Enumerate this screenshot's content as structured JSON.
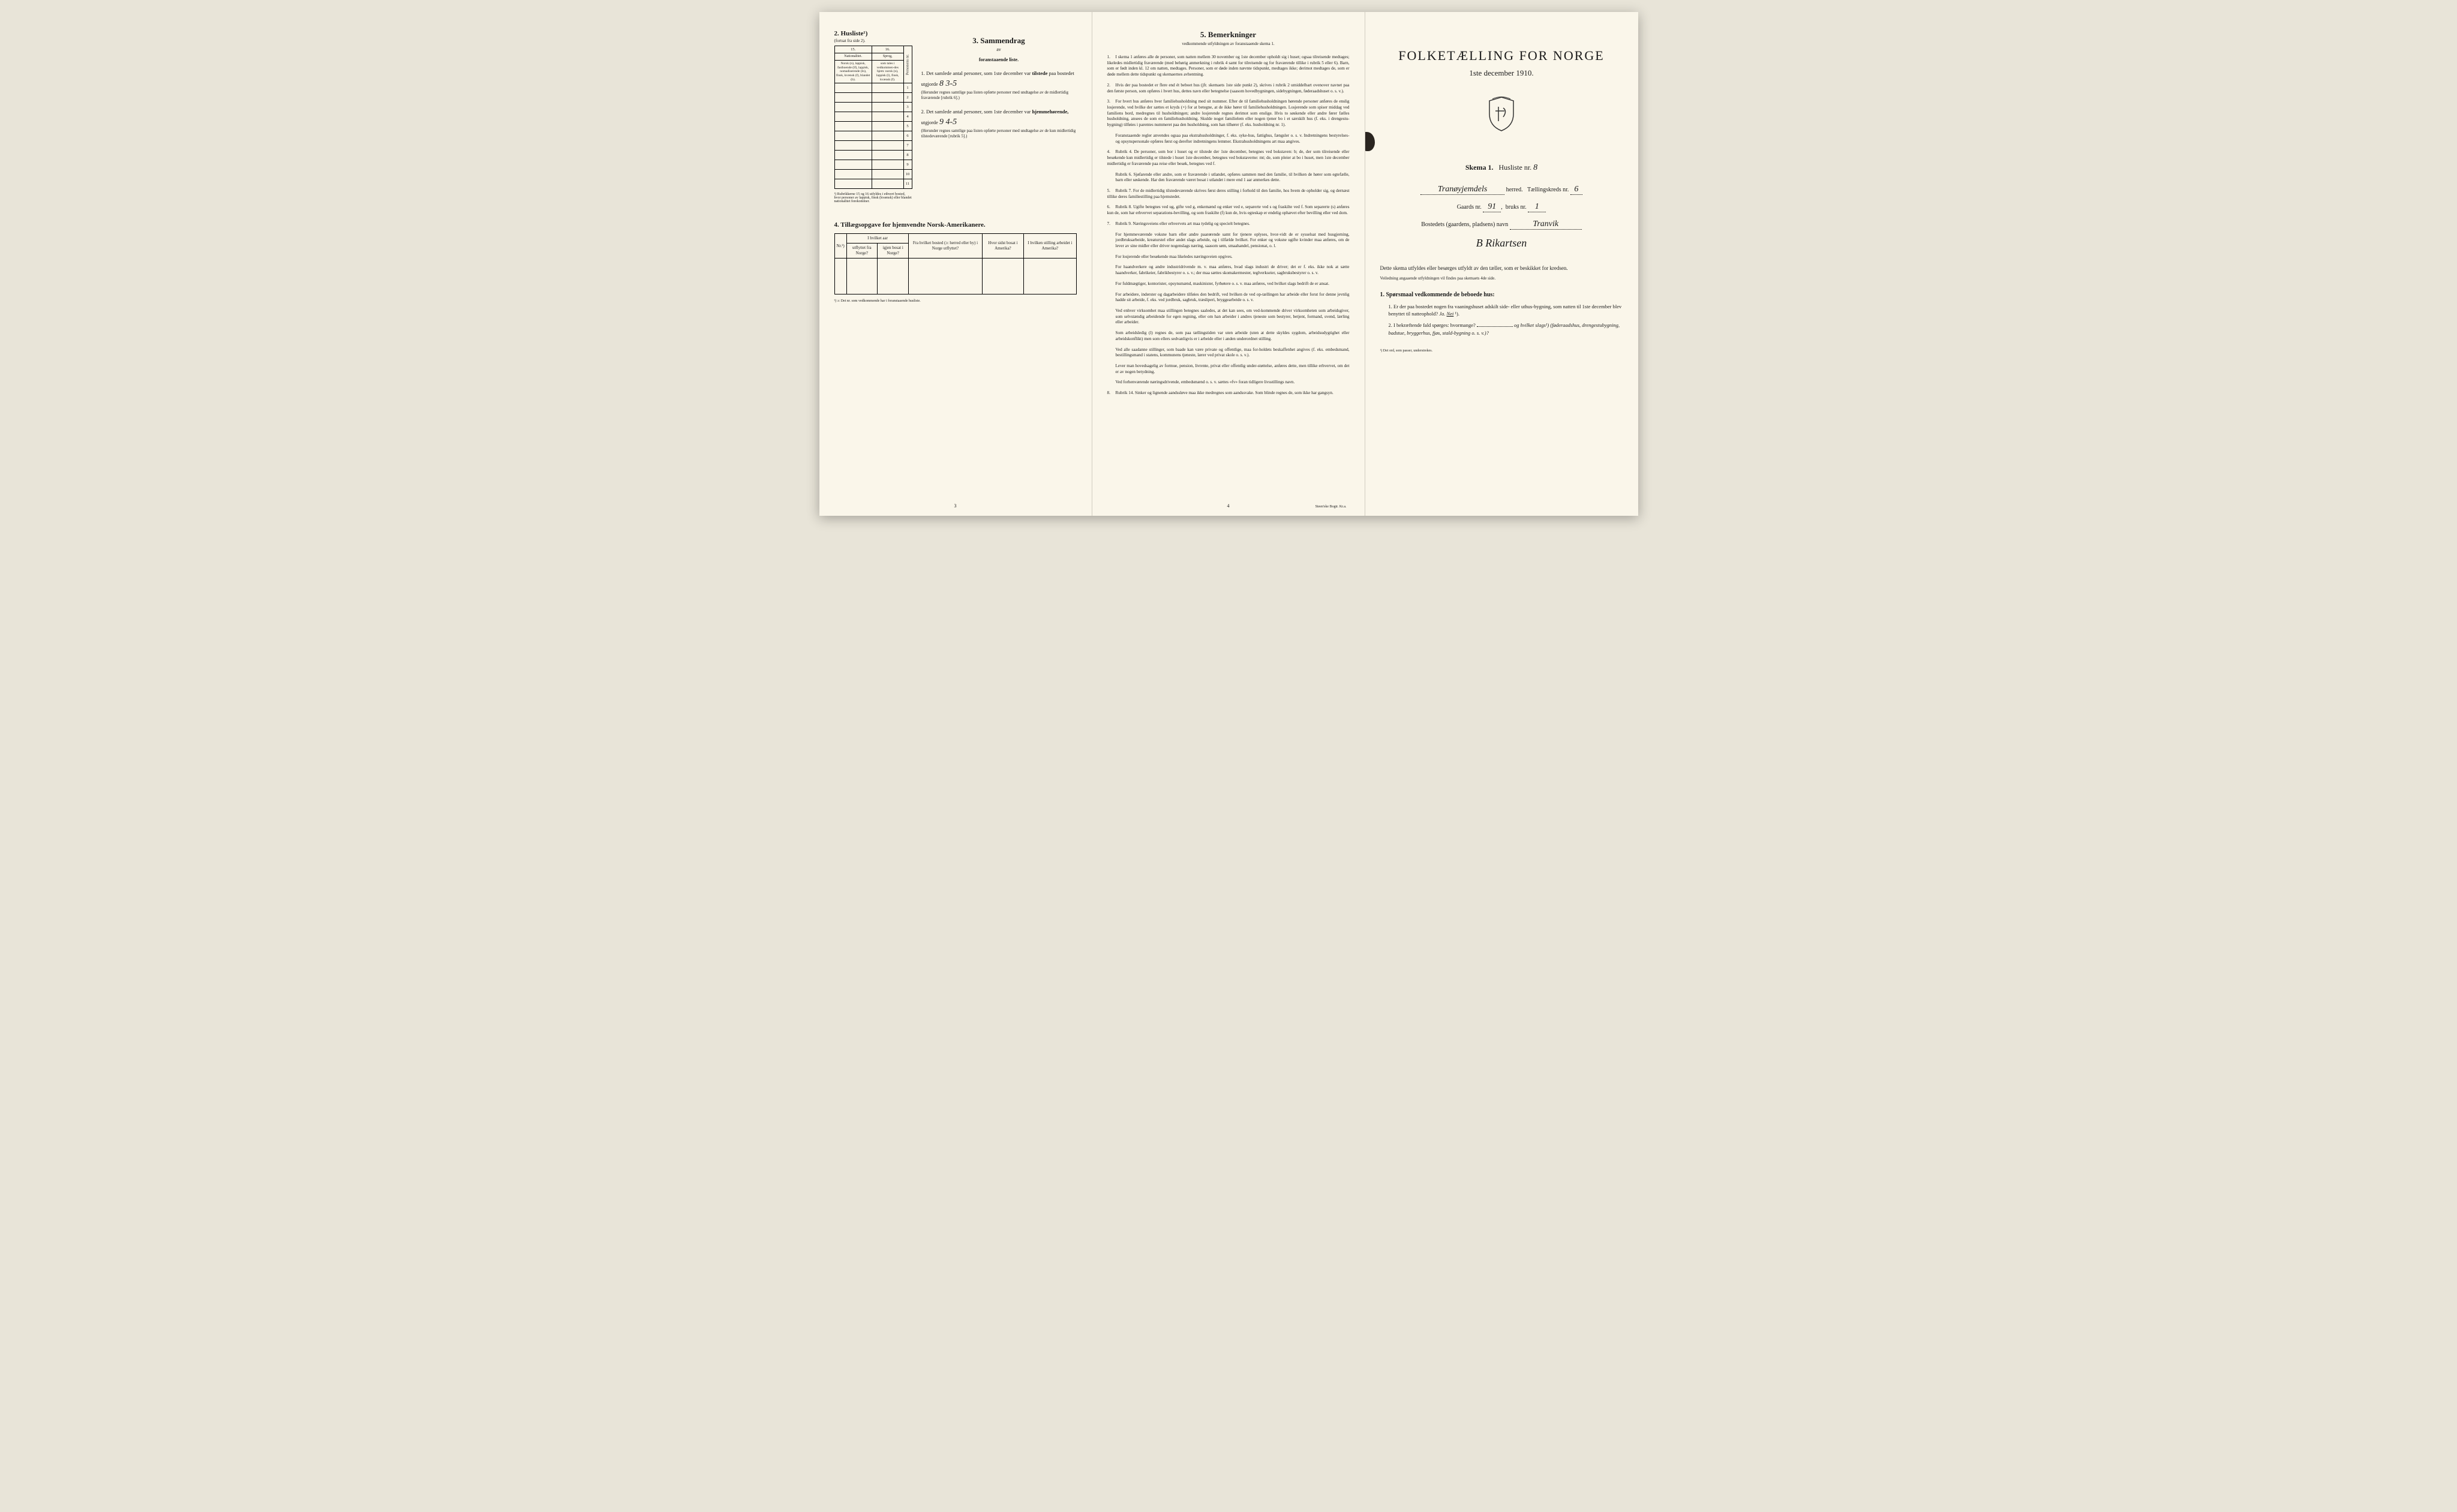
{
  "page1": {
    "section2": {
      "title": "2. Husliste¹)",
      "subtitle": "(fortsat fra side 2).",
      "col_left_num": "15.",
      "col_right_num": "16.",
      "col_left_header": "Nationalitet.",
      "col_right_header": "Sprog,",
      "col_left_text": "Norsk (n), lappisk, fastboende (lf), lappisk, nomadiserende (ln), finsk, kvænsk (f), blandet (b).",
      "col_right_text": "som tales i vedkommen-des hjem: norsk (n), lappisk (l), finsk, kvænsk (f).",
      "col_person": "Personens nr.",
      "row_count": 11,
      "footnote": "¹) Rubrikkerne 15 og 16 utfyldes i ethvert bosted, hvor personer av lappisk, finsk (kvænsk) eller blandet nationalitet forekommer."
    },
    "section3": {
      "title": "3. Sammendrag",
      "sub1": "av",
      "sub2": "foranstaaende liste.",
      "item1_text": "1. Det samlede antal personer, som 1ste december var",
      "item1_bold": "tilstede",
      "item1_cont": "paa bostedet utgjorde",
      "item1_value": "8  3-5",
      "item1_fine": "(Herunder regnes samtlige paa listen opførte personer med undtagelse av de midlertidig fraværende [rubrik 6].)",
      "item2_text": "2. Det samlede antal personer, som 1ste december var",
      "item2_bold": "hjemmehørende,",
      "item2_cont": "utgjorde",
      "item2_value": "9  4-5",
      "item2_fine": "(Herunder regnes samtlige paa listen opførte personer med undtagelse av de kun midlertidig tilstedeværende [rubrik 5].)"
    },
    "section4": {
      "title": "4. Tillægsopgave for hjemvendte Norsk-Amerikanere.",
      "cols": {
        "nr": "Nr.²)",
        "group1": "I hvilket aar",
        "utflyttet": "utflyttet fra Norge?",
        "igjen": "igjen bosat i Norge?",
        "fra_bosted": "Fra hvilket bosted (ɔ: herred eller by) i Norge utflyttet?",
        "hvor_sidst": "Hvor sidst bosat i Amerika?",
        "stilling": "I hvilken stilling arbeidet i Amerika?"
      },
      "footnote": "²) ɔ: Det nr. som vedkommende har i foranstaaende husliste."
    },
    "page_num": "3"
  },
  "page2": {
    "title": "5. Bemerkninger",
    "subtitle": "vedkommende utfyldningen av foranstaaende skema 1.",
    "items": [
      "I skema 1 anføres alle de personer, som natten mellem 30 november og 1ste december opholdt sig i huset; ogsaa tilreisende medtages; likeledes midlertidig fraværende (med behørig anmerkning i rubrik 4 samt for tilreisende og for fraværende tillike i rubrik 5 eller 6). Barn, som er født inden kl. 12 om natten, medtages. Personer, som er døde inden nævnte tidspunkt, medtages ikke; derimot medtages de, som er døde mellem dette tidspunkt og skemaernes avhentning.",
      "Hvis der paa bostedet er flere end ét beboet hus (jfr. skemaets 1ste side punkt 2), skrives i rubrik 2 umiddelbart ovenover navnet paa den første person, som opføres i hvert hus, dettes navn eller betegnelse (saasom hovedbygningen, sidebygningen, føderaadshuset o. s. v.).",
      "For hvert hus anføres hver familiehusholdning med sit nummer. Efter de til familiehusholdningen hørende personer anføres de enslig losjerende, ved hvilke der sættes et kryds (×) for at betegne, at de ikke hører til familiehusholdningen. Losjerende som spiser middag ved familiens bord, medregnes til husholdningen; andre losjerende regnes derimot som enslige. Hvis to søskende eller andre fører fælles husholdning, ansees de som en familiehusholdning. Skulde noget familielem eller nogen tjener bo i et særskilt hus (f. eks. i drengestu-bygning) tilføies i parentes nummeret paa den husholdning, som han tilhører (f. eks. husholdning nr. 1).",
      "Rubrik 4. De personer, som bor i huset og er tilstede der 1ste december, betegnes ved bokstaven: b; de, der som tilreisende eller besøkende kun midlertidig er tilstede i huset 1ste december, betegnes ved bokstaverne: mt; de, som pleier at bo i huset, men 1ste december midlertidig er fraværende paa reise eller besøk, betegnes ved f.",
      "Rubrik 7. For de midlertidig tilstedeværende skrives først deres stilling i forhold til den familie, hos hvem de opholder sig, og dernæst tillike deres familiestilling paa hjemstedet.",
      "Rubrik 8. Ugifte betegnes ved ug, gifte ved g, enkemænd og enker ved e, separerte ved s og fraskilte ved f. Som separerte (s) anføres kun de, som har erhvervet separations-bevilling, og som fraskilte (f) kun de, hvis egteskap er endelig ophævet efter bevilling eller ved dom.",
      "Rubrik 9. Næringsveiens eller erhvervets art maa tydelig og specielt betegnes.",
      "Rubrik 14. Sinker og lignende aandssløve maa ikke medregnes som aandssvake. Som blinde regnes de, som ikke har gangsyn."
    ],
    "item3_extra": "Foranstaaende regler anvendes ogsaa paa ekstrahusholdninger, f. eks. syke-hus, fattighus, fængsler o. s. v. Indretningens bestyrelses- og opsynspersonale opføres først og derefter indretningens lemmer. Ekstrahusholdningens art maa angives.",
    "item4_sub1": "Rubrik 6. Sjøfarende eller andre, som er fraværende i utlandet, opføres sammen med den familie, til hvilken de hører som egtefælle, barn eller søskende. Har den fraværende været bosat i utlandet i mere end 1 aar anmerkes dette.",
    "item7_extras": [
      "For hjemmeværende voksne barn eller andre paarørende samt for tjenere oplyses, hvor-vidt de er sysselsat med husgjerning, jordbruksarbeide, kreaturstel eller andet slags arbeide, og i tilfælde hvilket. For enker og voksne ugifte kvinder maa anføres, om de lever av sine midler eller driver nogenslags næring, saasom søm, smaahandel, pensionat, o. l.",
      "For losjerende eller besøkende maa likeledes næringsveien opgives.",
      "For haandverkere og andre industridrivende m. v. maa anføres, hvad slags industri de driver; det er f. eks. ikke nok at sætte haandverker, fabrikeier, fabrikbestyrer o. s. v.; der maa sættes skomakermester, teglverkseier, sagbruksbestyrer o. s. v.",
      "For fuldmægtiger, kontorister, opsynsmænd, maskinister, fyrbøtere o. s. v. maa anføres, ved hvilket slags bedrift de er ansat.",
      "For arbeidere, inderster og dagarbeidere tilføies den bedrift, ved hvilken de ved op-tællingen har arbeide eller forut for denne jevnlig hadde sit arbeide, f. eks. ved jordbruk, sagbruk, træsliperi, bryggearbeide o. s. v.",
      "Ved enhver virksomhet maa stillingen betegnes saaledes, at det kan sees, om ved-kommende driver virksomheten som arbeidsgiver, som selvstændig arbeidende for egen regning, eller om han arbeider i andres tjeneste som bestyrer, betjent, formand, svend, lærling eller arbeider.",
      "Som arbeidsledig (l) regnes de, som paa tællingstiden var uten arbeide (uten at dette skyldes sygdom, arbeidsudygtighet eller arbeidskonflikt) men som ellers sedvanligvis er i arbeide eller i anden underordnet stilling.",
      "Ved alle saadanne stillinger, som baade kan være private og offentlige, maa for-holdets beskaffenhet angives (f. eks. embedsmand, bestillingsmand i statens, kommunens tjeneste, lærer ved privat skole o. s. v.).",
      "Lever man hovedsagelig av formue, pension, livrente, privat eller offentlig under-støttelse, anføres dette, men tillike erhvervet, om det er av nogen betydning.",
      "Ved forhenværende næringsdrivende, embedsmænd o. s. v. sættes «fv» foran tidligere livsstillings navn."
    ],
    "page_num": "4",
    "printer": "Steen'ske Bogtr. Kr.a."
  },
  "page3": {
    "title": "FOLKETÆLLING FOR NORGE",
    "date": "1ste december 1910.",
    "skema": "Skema 1.",
    "husliste_label": "Husliste nr.",
    "husliste_nr": "8",
    "herred_value": "Tranøyjemdels",
    "herred_label": "herred.",
    "kreds_label": "Tællingskreds nr.",
    "kreds_nr": "6",
    "gaards_label": "Gaards nr.",
    "gaards_nr": "91",
    "bruks_label": "bruks nr.",
    "bruks_nr": "1",
    "bosted_label": "Bostedets (gaardens, pladsens) navn",
    "bosted_value": "Tranvik",
    "signature": "B Rikartsen",
    "desc1": "Dette skema utfyldes eller besørges utfyldt av den tæller, som er beskikket for kredsen.",
    "desc2": "Veiledning angaaende utfyldningen vil findes paa skemaets 4de side.",
    "q_header": "1. Spørsmaal vedkommende de beboede hus:",
    "q1": "1. Er der paa bostedet nogen fra vaaningshuset adskilt side- eller uthus-bygning, som natten til 1ste december blev benyttet til natteophold?",
    "q1_ja": "Ja.",
    "q1_nei": "Nei",
    "q1_sup": "¹).",
    "q2": "2. I bekræftende fald spørges: hvormange?",
    "q2_cont": "og hvilket slags¹) (føderaadshus, drengestubygning, badstue, bryggerhus, fjøs, stald-bygning o. s. v.)?",
    "footnote": "¹) Det ord, som passer, understrekes."
  }
}
